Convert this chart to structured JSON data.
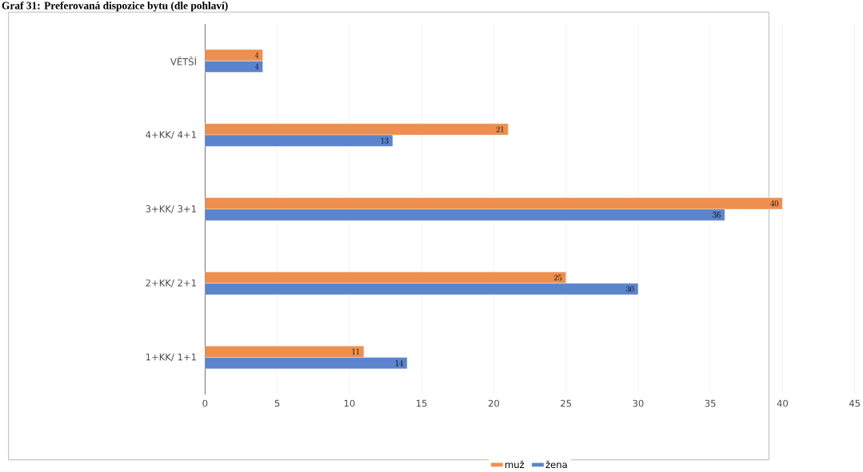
{
  "chart_data": {
    "type": "bar",
    "orientation": "horizontal",
    "title": "Graf 31: Preferovaná dispozice bytu (dle pohlaví)",
    "categories": [
      "VĚTŠÍ",
      "4+KK/ 4+1",
      "3+KK/ 3+1",
      "2+KK/ 2+1",
      "1+KK/ 1+1"
    ],
    "series": [
      {
        "name": "muž",
        "color": "#ed8f4f",
        "values": [
          4,
          21,
          40,
          25,
          11
        ]
      },
      {
        "name": "žena",
        "color": "#5b84cc",
        "values": [
          4,
          13,
          36,
          30,
          14
        ]
      }
    ],
    "xlim": [
      0,
      45
    ],
    "xticks": [
      0,
      5,
      10,
      15,
      20,
      25,
      30,
      35,
      40,
      45
    ],
    "grid": "x",
    "legend": "bottom",
    "data_labels": true
  }
}
